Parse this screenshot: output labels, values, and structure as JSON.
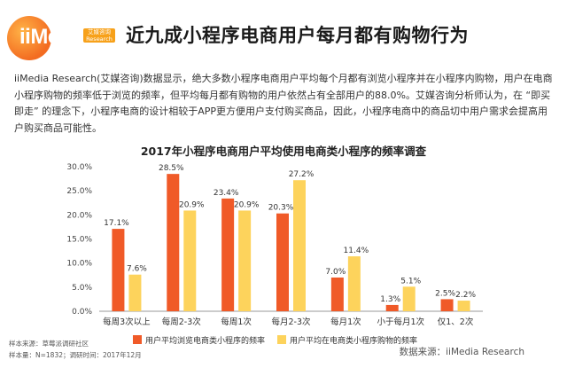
{
  "header": {
    "logo_text": "iiMedia",
    "logo_badge_line1": "艾媒咨询",
    "logo_badge_line2": "Research",
    "title": "近九成小程序电商用户每月都有购物行为"
  },
  "body_text": "iiMedia Research(艾媒咨询)数据显示，绝大多数小程序电商用户平均每个月都有浏览小程序并在小程序内购物，用户在电商小程序购物的频率低于浏览的频率，但平均每月都有购物的用户依然占有全部用户的88.0%。艾媒咨询分析师认为，在 “即买即走” 的理念下，小程序电商的设计相较于APP更方便用户支付购买商品，因此，小程序电商中的商品切中用户需求会提高用户购买商品可能性。",
  "colors": {
    "series1": "#f05a28",
    "series2": "#fdd35c",
    "axis": "#999999"
  },
  "chart_data": {
    "type": "bar",
    "title": "2017年小程序电商用户平均使用电商类小程序的频率调查",
    "categories": [
      "每周3次以上",
      "每周2-3次",
      "每周1次",
      "每月2-3次",
      "每月1次",
      "小于每月1次",
      "仅1、2次"
    ],
    "series": [
      {
        "name": "用户平均浏览电商类小程序的频率",
        "values": [
          17.1,
          28.5,
          23.4,
          20.3,
          7.0,
          1.3,
          2.5
        ],
        "labels": [
          "17.1%",
          "28.5%",
          "23.4%",
          "20.3%",
          "7.0%",
          "1.3%",
          "2.5%"
        ]
      },
      {
        "name": "用户平均在电商类小程序购物的频率",
        "values": [
          7.6,
          20.9,
          20.9,
          27.2,
          11.4,
          5.1,
          2.2
        ],
        "labels": [
          "7.6%",
          "20.9%",
          "20.9%",
          "27.2%",
          "11.4%",
          "5.1%",
          "2.2%"
        ]
      }
    ],
    "ylim": [
      0,
      30
    ],
    "yticks": [
      "0.0%",
      "5.0%",
      "10.0%",
      "15.0%",
      "20.0%",
      "25.0%",
      "30.0%"
    ],
    "grid": false,
    "legend_position": "bottom"
  },
  "footnotes": {
    "line1": "样本来源：草莓派调研社区",
    "line2": "样本量：N=1832；调研时间：2017年12月"
  },
  "source": "数据来源：iiMedia Research"
}
